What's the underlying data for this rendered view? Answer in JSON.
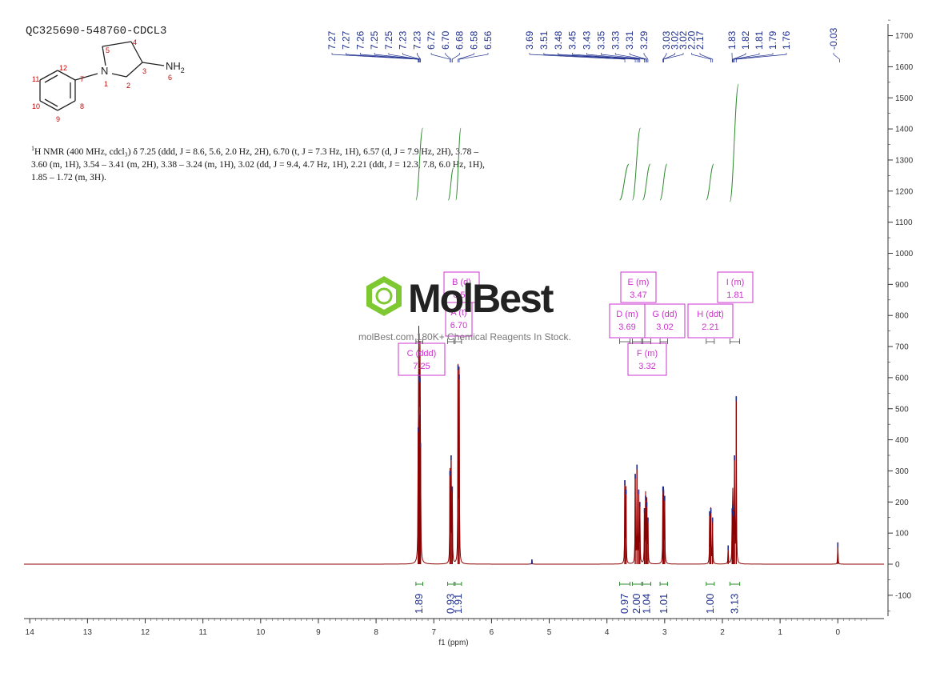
{
  "header": {
    "sample_id": "QC325690-548760-CDCL3"
  },
  "molecule": {
    "atom_labels": [
      "12",
      "11",
      "10",
      "9",
      "8",
      "7",
      "1",
      "5",
      "4",
      "3",
      "2",
      "6"
    ],
    "nitrogen": "N",
    "amine": "NH",
    "amine_sub": "2"
  },
  "description": {
    "sup": "1",
    "text": "H NMR (400 MHz, cdcl₃) δ 7.25 (ddd, J = 8.6, 5.6, 2.0 Hz, 2H), 6.70 (t, J = 7.3 Hz, 1H), 6.57 (d, J = 7.9 Hz, 2H), 3.78 – 3.60 (m, 1H), 3.54 – 3.41 (m, 2H), 3.38 – 3.24 (m, 1H), 3.02 (dd, J = 9.4, 4.7 Hz, 1H), 2.21 (ddt, J = 12.3, 7.8, 6.0 Hz, 1H), 1.85 – 1.72 (m, 3H)."
  },
  "watermark": {
    "logo": "MolBest",
    "tagline": "molBest.com 180K+ Chemical Reagents In Stock."
  },
  "colors": {
    "spectrum": "#8b0000",
    "peak_labels": "#1f2f8f",
    "integrals": "#2e8b2e",
    "multiplet_boxes": "#cc33cc",
    "axis": "#333333"
  },
  "chart_data": {
    "type": "line",
    "xlabel": "f1 (ppm)",
    "xlim": [
      14.1,
      -0.8
    ],
    "ylim": [
      -180,
      1760
    ],
    "x_ticks": [
      14,
      13,
      12,
      11,
      10,
      9,
      8,
      7,
      6,
      5,
      4,
      3,
      2,
      1,
      0
    ],
    "y_ticks": [
      -100,
      0,
      100,
      200,
      300,
      400,
      500,
      600,
      700,
      800,
      900,
      1000,
      1100,
      1200,
      1300,
      1400,
      1500,
      1600,
      1700
    ],
    "peaks": [
      {
        "ppm": 7.27,
        "h": 440
      },
      {
        "ppm": 7.26,
        "h": 610
      },
      {
        "ppm": 7.25,
        "h": 480
      },
      {
        "ppm": 7.24,
        "h": 600
      },
      {
        "ppm": 7.23,
        "h": 390
      },
      {
        "ppm": 6.72,
        "h": 300
      },
      {
        "ppm": 6.7,
        "h": 350
      },
      {
        "ppm": 6.68,
        "h": 250
      },
      {
        "ppm": 6.58,
        "h": 640
      },
      {
        "ppm": 6.56,
        "h": 610
      },
      {
        "ppm": 3.69,
        "h": 270
      },
      {
        "ppm": 3.67,
        "h": 240
      },
      {
        "ppm": 3.51,
        "h": 290
      },
      {
        "ppm": 3.48,
        "h": 320
      },
      {
        "ppm": 3.45,
        "h": 240
      },
      {
        "ppm": 3.43,
        "h": 200
      },
      {
        "ppm": 3.35,
        "h": 180
      },
      {
        "ppm": 3.33,
        "h": 220
      },
      {
        "ppm": 3.31,
        "h": 200
      },
      {
        "ppm": 3.29,
        "h": 150
      },
      {
        "ppm": 3.03,
        "h": 250
      },
      {
        "ppm": 3.02,
        "h": 240
      },
      {
        "ppm": 3.0,
        "h": 220
      },
      {
        "ppm": 2.22,
        "h": 170
      },
      {
        "ppm": 2.2,
        "h": 180
      },
      {
        "ppm": 2.17,
        "h": 150
      },
      {
        "ppm": 1.83,
        "h": 180
      },
      {
        "ppm": 1.82,
        "h": 190
      },
      {
        "ppm": 1.81,
        "h": 170
      },
      {
        "ppm": 1.79,
        "h": 350
      },
      {
        "ppm": 1.76,
        "h": 540
      },
      {
        "ppm": 1.9,
        "h": 60
      },
      {
        "ppm": 5.3,
        "h": 15
      },
      {
        "ppm": 0.0,
        "h": 70
      }
    ],
    "peak_labels": [
      {
        "ppm": 7.27,
        "label": "7.27"
      },
      {
        "ppm": 7.27,
        "label": "7.27"
      },
      {
        "ppm": 7.26,
        "label": "7.26"
      },
      {
        "ppm": 7.25,
        "label": "7.25"
      },
      {
        "ppm": 7.25,
        "label": "7.25"
      },
      {
        "ppm": 7.23,
        "label": "7.23"
      },
      {
        "ppm": 7.23,
        "label": "7.23"
      },
      {
        "ppm": 6.72,
        "label": "6.72"
      },
      {
        "ppm": 6.7,
        "label": "6.70"
      },
      {
        "ppm": 6.68,
        "label": "6.68"
      },
      {
        "ppm": 6.58,
        "label": "6.58"
      },
      {
        "ppm": 6.56,
        "label": "6.56"
      },
      {
        "ppm": 3.69,
        "label": "3.69"
      },
      {
        "ppm": 3.51,
        "label": "3.51"
      },
      {
        "ppm": 3.48,
        "label": "3.48"
      },
      {
        "ppm": 3.45,
        "label": "3.45"
      },
      {
        "ppm": 3.43,
        "label": "3.43"
      },
      {
        "ppm": 3.35,
        "label": "3.35"
      },
      {
        "ppm": 3.33,
        "label": "3.33"
      },
      {
        "ppm": 3.31,
        "label": "3.31"
      },
      {
        "ppm": 3.29,
        "label": "3.29"
      },
      {
        "ppm": 3.03,
        "label": "3.03"
      },
      {
        "ppm": 3.02,
        "label": "3.02"
      },
      {
        "ppm": 3.02,
        "label": "3.02"
      },
      {
        "ppm": 2.2,
        "label": "2.20"
      },
      {
        "ppm": 2.17,
        "label": "2.17"
      },
      {
        "ppm": 1.83,
        "label": "1.83"
      },
      {
        "ppm": 1.82,
        "label": "1.82"
      },
      {
        "ppm": 1.81,
        "label": "1.81"
      },
      {
        "ppm": 1.79,
        "label": "1.79"
      },
      {
        "ppm": 1.76,
        "label": "1.76"
      },
      {
        "ppm": -0.03,
        "label": "-0.03"
      }
    ],
    "integrals": [
      {
        "from": 7.31,
        "to": 7.19,
        "value": "1.89"
      },
      {
        "from": 6.76,
        "to": 6.65,
        "value": "0.93"
      },
      {
        "from": 6.63,
        "to": 6.52,
        "value": "1.91"
      },
      {
        "from": 3.78,
        "to": 3.6,
        "value": "0.97"
      },
      {
        "from": 3.56,
        "to": 3.4,
        "value": "2.00"
      },
      {
        "from": 3.38,
        "to": 3.24,
        "value": "1.04"
      },
      {
        "from": 3.08,
        "to": 2.95,
        "value": "1.01"
      },
      {
        "from": 2.28,
        "to": 2.14,
        "value": "1.00"
      },
      {
        "from": 1.87,
        "to": 1.7,
        "value": "3.13"
      }
    ],
    "multiplets": [
      {
        "letter": "A",
        "mult": "t",
        "shift": "6.70",
        "ppm": 6.7
      },
      {
        "letter": "B",
        "mult": "d",
        "shift": "6.57",
        "ppm": 6.57
      },
      {
        "letter": "C",
        "mult": "ddd",
        "shift": "7.25",
        "ppm": 7.25
      },
      {
        "letter": "D",
        "mult": "m",
        "shift": "3.69",
        "ppm": 3.69
      },
      {
        "letter": "E",
        "mult": "m",
        "shift": "3.47",
        "ppm": 3.47
      },
      {
        "letter": "F",
        "mult": "m",
        "shift": "3.32",
        "ppm": 3.32
      },
      {
        "letter": "G",
        "mult": "dd",
        "shift": "3.02",
        "ppm": 3.02
      },
      {
        "letter": "H",
        "mult": "ddt",
        "shift": "2.21",
        "ppm": 2.21
      },
      {
        "letter": "I",
        "mult": "m",
        "shift": "1.81",
        "ppm": 1.81
      }
    ]
  }
}
